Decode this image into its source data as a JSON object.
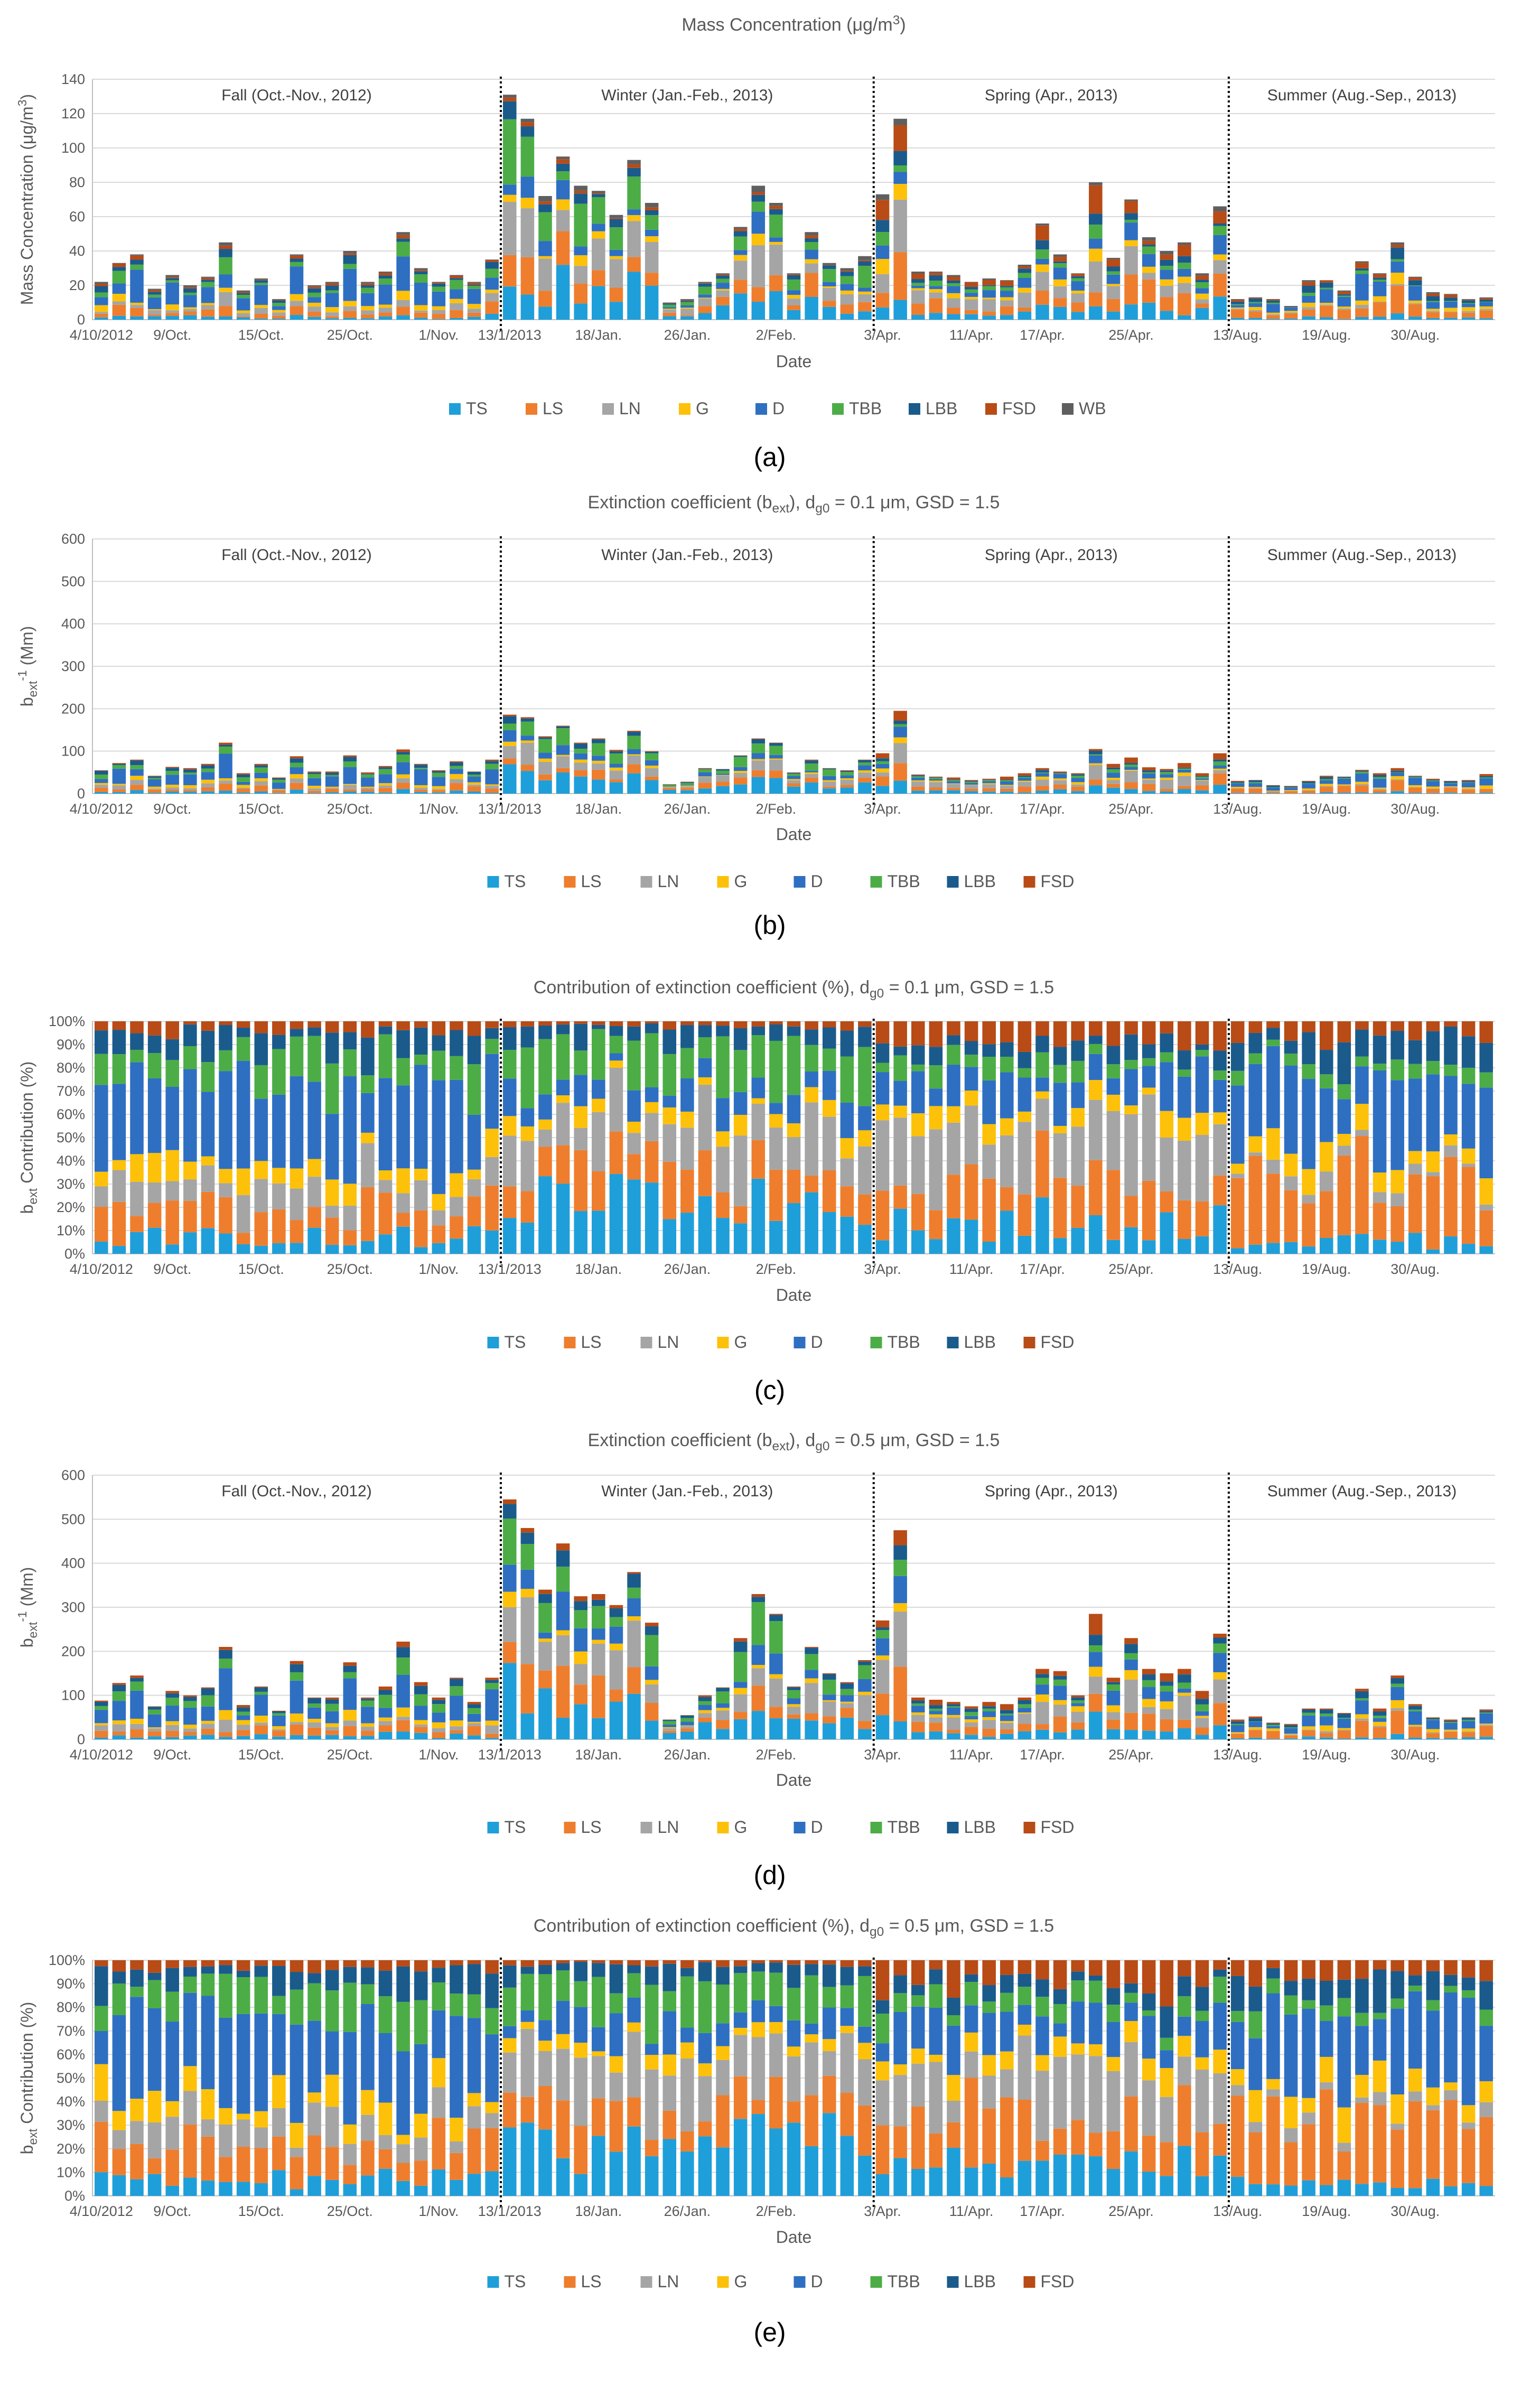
{
  "colors": {
    "TS": "#1f9fd9",
    "LS": "#ee7e2d",
    "LN": "#a5a5a5",
    "G": "#fdc10a",
    "D": "#2e6fc2",
    "TBB": "#4cad47",
    "LBB": "#1a5b8c",
    "FSD": "#b84b16",
    "WB": "#5f5f5f",
    "grid": "#d9d9d9",
    "axis": "#bfbfbf",
    "divider": "#000000"
  },
  "x_tick_labels": [
    "4/10/2012",
    "9/Oct.",
    "15/Oct.",
    "25/Oct.",
    "1/Nov.",
    "13/1/2013",
    "18/Jan.",
    "26/Jan.",
    "2/Feb.",
    "3/Apr.",
    "11/Apr.",
    "17/Apr.",
    "25/Apr.",
    "13/Aug.",
    "19/Aug.",
    "30/Aug."
  ],
  "seasons": [
    "Fall (Oct.-Nov., 2012)",
    "Winter (Jan.-Feb., 2013)",
    "Spring (Apr., 2013)",
    "Summer (Aug.-Sep., 2013)"
  ],
  "chart_data": [
    {
      "panel": "(a)",
      "type": "bar",
      "stacked": true,
      "title_parts": {
        "main": "Mass Concentration (μg/m",
        "sup": "3",
        "end": ")"
      },
      "ylabel": {
        "main": "Mass Concentration (μg/m",
        "sup": "3",
        "end": ")"
      },
      "xlabel": "Date",
      "ylim": [
        0,
        140
      ],
      "yticks": [
        0,
        20,
        40,
        60,
        80,
        100,
        120,
        140
      ],
      "series": [
        "TS",
        "LS",
        "LN",
        "G",
        "D",
        "TBB",
        "LBB",
        "FSD",
        "WB"
      ],
      "totals": [
        22,
        33,
        38,
        18,
        26,
        20,
        25,
        45,
        17,
        24,
        12,
        38,
        20,
        22,
        40,
        22,
        28,
        51,
        30,
        22,
        26,
        22,
        35,
        131,
        117,
        72,
        95,
        78,
        75,
        61,
        93,
        68,
        10,
        12,
        22,
        27,
        54,
        78,
        68,
        27,
        51,
        33,
        30,
        37,
        73,
        117,
        28,
        28,
        26,
        22,
        24,
        23,
        32,
        56,
        38,
        27,
        80,
        36,
        70,
        48,
        40,
        45,
        27,
        66,
        12,
        13,
        12,
        8,
        23,
        23,
        17,
        34,
        27,
        45,
        25,
        16,
        15,
        12,
        13
      ]
    },
    {
      "panel": "(b)",
      "type": "bar",
      "stacked": true,
      "title_parts": {
        "main": "Extinction coefficient (b",
        "sub": "ext",
        "end": "), d",
        "sub2": "g0",
        "end2": " = 0.1 μm, GSD = 1.5"
      },
      "ylabel": {
        "main": "b",
        "sub": "ext",
        "end": " (Mm",
        "sup": "-1",
        "end2": ")"
      },
      "xlabel": "Date",
      "ylim": [
        0,
        600
      ],
      "yticks": [
        0,
        100,
        200,
        300,
        400,
        500,
        600
      ],
      "series": [
        "TS",
        "LS",
        "LN",
        "G",
        "D",
        "TBB",
        "LBB",
        "FSD"
      ],
      "totals": [
        55,
        72,
        80,
        42,
        63,
        60,
        70,
        120,
        48,
        70,
        38,
        88,
        52,
        52,
        90,
        50,
        65,
        104,
        70,
        55,
        76,
        52,
        80,
        186,
        180,
        135,
        160,
        120,
        130,
        103,
        148,
        100,
        22,
        28,
        60,
        58,
        90,
        130,
        120,
        50,
        80,
        60,
        55,
        80,
        95,
        195,
        45,
        40,
        38,
        32,
        35,
        40,
        48,
        60,
        52,
        48,
        105,
        70,
        85,
        62,
        58,
        72,
        48,
        95,
        30,
        32,
        20,
        18,
        30,
        42,
        40,
        56,
        48,
        60,
        42,
        35,
        30,
        32,
        46
      ]
    },
    {
      "panel": "(c)",
      "type": "bar",
      "stacked": true,
      "percent": true,
      "title_parts": {
        "main": "Contribution of extinction coefficient (%), d",
        "sub": "g0",
        "end": " = 0.1 μm, GSD = 1.5"
      },
      "ylabel": {
        "main": "b",
        "sub": "ext",
        "end": " Contribution (%)"
      },
      "xlabel": "Date",
      "ylim": [
        0,
        100
      ],
      "yticks": [
        "0%",
        "10%",
        "20%",
        "30%",
        "40%",
        "50%",
        "60%",
        "70%",
        "80%",
        "90%",
        "100%"
      ],
      "series": [
        "TS",
        "LS",
        "LN",
        "G",
        "D",
        "TBB",
        "LBB",
        "FSD"
      ]
    },
    {
      "panel": "(d)",
      "type": "bar",
      "stacked": true,
      "title_parts": {
        "main": "Extinction coefficient (b",
        "sub": "ext",
        "end": "), d",
        "sub2": "g0",
        "end2": " = 0.5 μm, GSD = 1.5"
      },
      "ylabel": {
        "main": "b",
        "sub": "ext",
        "end": " (Mm",
        "sup": "-1",
        "end2": ")"
      },
      "xlabel": "Date",
      "ylim": [
        0,
        600
      ],
      "yticks": [
        0,
        100,
        200,
        300,
        400,
        500,
        600
      ],
      "series": [
        "TS",
        "LS",
        "LN",
        "G",
        "D",
        "TBB",
        "LBB",
        "FSD"
      ],
      "totals": [
        88,
        128,
        145,
        75,
        110,
        100,
        118,
        210,
        78,
        120,
        65,
        178,
        95,
        95,
        175,
        95,
        120,
        222,
        130,
        95,
        140,
        85,
        140,
        545,
        480,
        340,
        445,
        325,
        330,
        305,
        380,
        265,
        45,
        55,
        100,
        118,
        230,
        330,
        285,
        120,
        210,
        150,
        130,
        180,
        270,
        475,
        95,
        90,
        85,
        75,
        85,
        80,
        95,
        160,
        155,
        100,
        285,
        140,
        230,
        160,
        150,
        160,
        110,
        240,
        45,
        52,
        38,
        35,
        70,
        70,
        60,
        115,
        70,
        145,
        80,
        50,
        45,
        50,
        68
      ]
    },
    {
      "panel": "(e)",
      "type": "bar",
      "stacked": true,
      "percent": true,
      "title_parts": {
        "main": "Contribution of extinction coefficient (%), d",
        "sub": "g0",
        "end": " = 0.5 μm, GSD = 1.5"
      },
      "ylabel": {
        "main": "b",
        "sub": "ext",
        "end": " Contribution (%)"
      },
      "xlabel": "Date",
      "ylim": [
        0,
        100
      ],
      "yticks": [
        "0%",
        "10%",
        "20%",
        "30%",
        "40%",
        "50%",
        "60%",
        "70%",
        "80%",
        "90%",
        "100%"
      ],
      "series": [
        "TS",
        "LS",
        "LN",
        "G",
        "D",
        "TBB",
        "LBB",
        "FSD"
      ]
    }
  ],
  "composition_by_season": {
    "Fall": {
      "TS": 0.07,
      "LS": 0.13,
      "LN": 0.1,
      "G": 0.09,
      "D": 0.35,
      "TBB": 0.13,
      "LBB": 0.09,
      "FSD": 0.04
    },
    "Winter": {
      "TS": 0.24,
      "LS": 0.15,
      "LN": 0.2,
      "G": 0.05,
      "D": 0.1,
      "TBB": 0.18,
      "LBB": 0.06,
      "FSD": 0.02
    },
    "Spring": {
      "TS": 0.14,
      "LS": 0.2,
      "LN": 0.22,
      "G": 0.07,
      "D": 0.14,
      "TBB": 0.07,
      "LBB": 0.06,
      "FSD": 0.1
    },
    "Summer": {
      "TS": 0.06,
      "LS": 0.28,
      "LN": 0.04,
      "G": 0.1,
      "D": 0.3,
      "TBB": 0.05,
      "LBB": 0.11,
      "FSD": 0.06
    }
  },
  "season_day_counts": [
    23,
    21,
    20,
    15
  ],
  "tick_day_index": [
    0,
    4,
    9,
    14,
    19,
    23,
    28,
    33,
    38,
    44,
    49,
    53,
    58,
    64,
    69,
    74
  ],
  "panel_letters": [
    "(a)",
    "(b)",
    "(c)",
    "(d)",
    "(e)"
  ]
}
